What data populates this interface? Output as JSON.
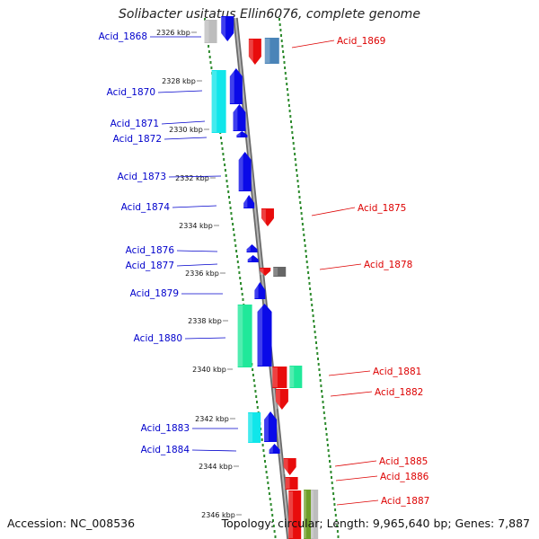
{
  "title": "Solibacter usitatus Ellin6076, complete genome",
  "footer": {
    "accession": "Accession: NC_008536",
    "summary": "Topology: circular; Length: 9,965,640 bp; Genes: 7,887"
  },
  "colors": {
    "backbone": "#8a8a8a",
    "dots": "#2e8b2e",
    "left_label": "#0000cc",
    "right_label": "#dd0000"
  },
  "ticks": [
    "2326 kbp",
    "2328 kbp",
    "2330 kbp",
    "2332 kbp",
    "2334 kbp",
    "2336 kbp",
    "2338 kbp",
    "2340 kbp",
    "2342 kbp",
    "2344 kbp",
    "2346 kbp"
  ],
  "genes_left": [
    {
      "label": "Acid_1868"
    },
    {
      "label": "Acid_1870"
    },
    {
      "label": "Acid_1871"
    },
    {
      "label": "Acid_1872"
    },
    {
      "label": "Acid_1873"
    },
    {
      "label": "Acid_1874"
    },
    {
      "label": "Acid_1876"
    },
    {
      "label": "Acid_1877"
    },
    {
      "label": "Acid_1879"
    },
    {
      "label": "Acid_1880"
    },
    {
      "label": "Acid_1883"
    },
    {
      "label": "Acid_1884"
    }
  ],
  "genes_right": [
    {
      "label": "Acid_1869"
    },
    {
      "label": "Acid_1875"
    },
    {
      "label": "Acid_1878"
    },
    {
      "label": "Acid_1881"
    },
    {
      "label": "Acid_1882"
    },
    {
      "label": "Acid_1885"
    },
    {
      "label": "Acid_1886"
    },
    {
      "label": "Acid_1887"
    }
  ]
}
